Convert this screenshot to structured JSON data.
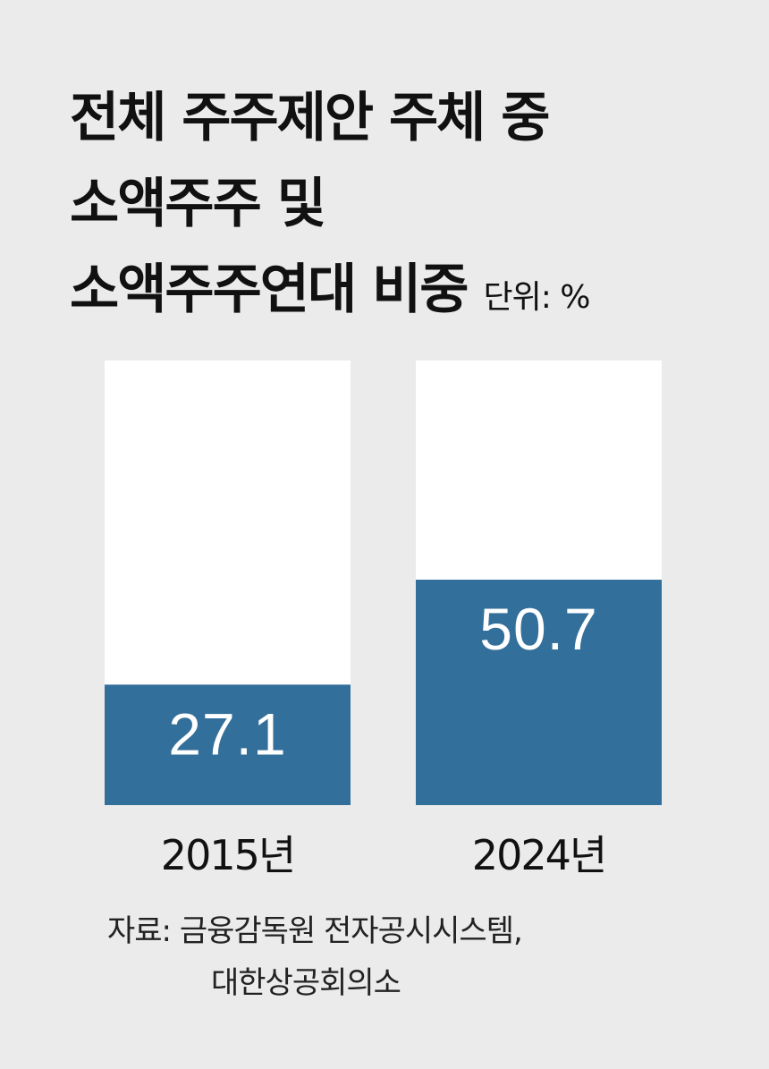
{
  "title": {
    "line1": "전체 주주제안 주체 중",
    "line2": "소액주주 및",
    "line3": "소액주주연대 비중",
    "unit": "단위: %"
  },
  "source": {
    "line1": "자료: 금융감독원 전자공시시스템,",
    "line2": "대한상공회의소"
  },
  "colors": {
    "background": "#ebebeb",
    "bar_total": "#ffffff",
    "bar_value": "#336f9b",
    "value_text": "#ffffff"
  },
  "chart_data": {
    "type": "bar",
    "categories": [
      "2015년",
      "2024년"
    ],
    "values": [
      27.1,
      50.7
    ],
    "value_labels": [
      "27.1",
      "50.7"
    ],
    "ylim": [
      0,
      100
    ],
    "grid": false,
    "legend": "none"
  }
}
